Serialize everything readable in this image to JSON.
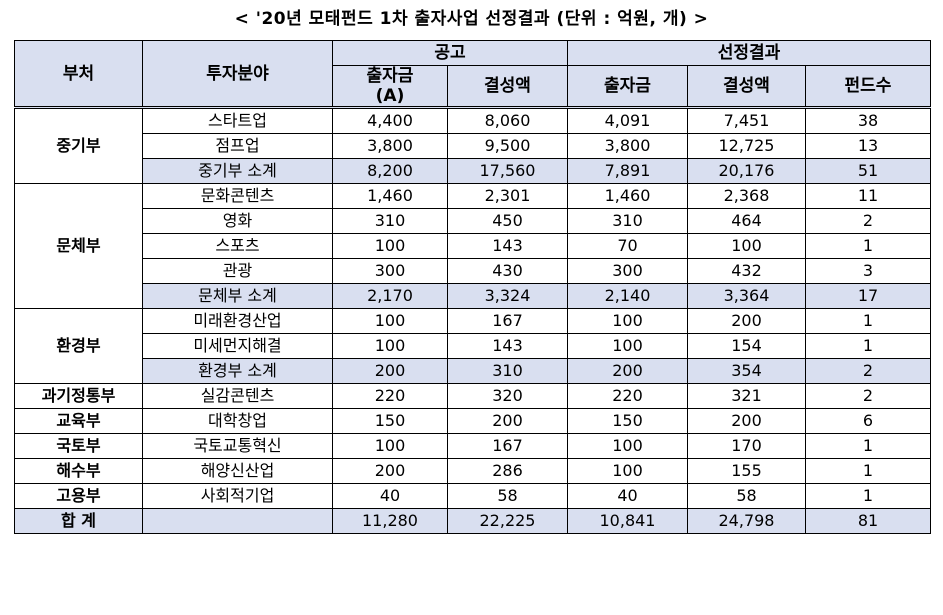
{
  "title": "< '20년 모태펀드 1차 출자사업 선정결과 (단위 : 억원, 개) >",
  "headers": {
    "dept": "부처",
    "field": "투자분야",
    "group_notice": "공고",
    "group_result": "선정결과",
    "notice_invest": "출자금",
    "notice_invest_sub": "(A)",
    "notice_form": "결성액",
    "result_invest": "출자금",
    "result_form": "결성액",
    "fund_count": "펀드수"
  },
  "rows": [
    {
      "dept": "중기부",
      "field": "스타트업",
      "v": [
        "4,400",
        "8,060",
        "4,091",
        "7,451",
        "38"
      ]
    },
    {
      "field": "점프업",
      "v": [
        "3,800",
        "9,500",
        "3,800",
        "12,725",
        "13"
      ]
    },
    {
      "field": "중기부 소계",
      "v": [
        "8,200",
        "17,560",
        "7,891",
        "20,176",
        "51"
      ]
    },
    {
      "dept": "문체부",
      "field": "문화콘텐츠",
      "v": [
        "1,460",
        "2,301",
        "1,460",
        "2,368",
        "11"
      ]
    },
    {
      "field": "영화",
      "v": [
        "310",
        "450",
        "310",
        "464",
        "2"
      ]
    },
    {
      "field": "스포츠",
      "v": [
        "100",
        "143",
        "70",
        "100",
        "1"
      ]
    },
    {
      "field": "관광",
      "v": [
        "300",
        "430",
        "300",
        "432",
        "3"
      ]
    },
    {
      "field": "문체부 소계",
      "v": [
        "2,170",
        "3,324",
        "2,140",
        "3,364",
        "17"
      ]
    },
    {
      "dept": "환경부",
      "field": "미래환경산업",
      "v": [
        "100",
        "167",
        "100",
        "200",
        "1"
      ]
    },
    {
      "field": "미세먼지해결",
      "v": [
        "100",
        "143",
        "100",
        "154",
        "1"
      ]
    },
    {
      "field": "환경부 소계",
      "v": [
        "200",
        "310",
        "200",
        "354",
        "2"
      ]
    },
    {
      "dept": "과기정통부",
      "field": "실감콘텐츠",
      "v": [
        "220",
        "320",
        "220",
        "321",
        "2"
      ]
    },
    {
      "dept": "교육부",
      "field": "대학창업",
      "v": [
        "150",
        "200",
        "150",
        "200",
        "6"
      ]
    },
    {
      "dept": "국토부",
      "field": "국토교통혁신",
      "v": [
        "100",
        "167",
        "100",
        "170",
        "1"
      ]
    },
    {
      "dept": "해수부",
      "field": "해양신산업",
      "v": [
        "200",
        "286",
        "100",
        "155",
        "1"
      ]
    },
    {
      "dept": "고용부",
      "field": "사회적기업",
      "v": [
        "40",
        "58",
        "40",
        "58",
        "1"
      ]
    },
    {
      "dept": "합 계",
      "field": "",
      "v": [
        "11,280",
        "22,225",
        "10,841",
        "24,798",
        "81"
      ]
    }
  ]
}
